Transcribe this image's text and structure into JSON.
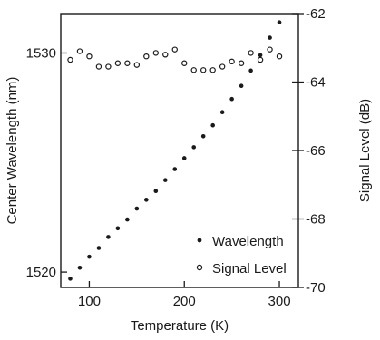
{
  "chart_data": {
    "type": "scatter",
    "title": "",
    "xlabel": "Temperature (K)",
    "ylabel_left": "Center Wavelength (nm)",
    "ylabel_right": "Signal Level (dB)",
    "xlim": [
      70,
      320
    ],
    "ylim_left": [
      1519.3,
      1531.8
    ],
    "ylim_right": [
      -70,
      -62
    ],
    "x_ticks": [
      100,
      200,
      300
    ],
    "y_left_ticks": [
      1520,
      1530
    ],
    "y_right_ticks": [
      -70,
      -68,
      -66,
      -64,
      -62
    ],
    "grid": false,
    "legend_position": "bottom-right",
    "series": [
      {
        "name": "Wavelength",
        "axis": "left",
        "marker": "filled-dot",
        "color": "#1a1a1a",
        "x": [
          80,
          90,
          100,
          110,
          120,
          130,
          140,
          150,
          160,
          170,
          180,
          190,
          200,
          210,
          220,
          230,
          240,
          250,
          260,
          270,
          280,
          290,
          300
        ],
        "y": [
          1519.7,
          1520.2,
          1520.7,
          1521.1,
          1521.6,
          1522.0,
          1522.4,
          1522.9,
          1523.3,
          1523.7,
          1524.2,
          1524.7,
          1525.2,
          1525.7,
          1526.2,
          1526.7,
          1527.3,
          1527.9,
          1528.5,
          1529.2,
          1529.9,
          1530.7,
          1531.4
        ]
      },
      {
        "name": "Signal Level",
        "axis": "right",
        "marker": "open-circle",
        "color": "#1a1a1a",
        "x": [
          80,
          90,
          100,
          110,
          120,
          130,
          140,
          150,
          160,
          170,
          180,
          190,
          200,
          210,
          220,
          230,
          240,
          250,
          260,
          270,
          280,
          290,
          300
        ],
        "y": [
          -63.35,
          -63.1,
          -63.25,
          -63.55,
          -63.55,
          -63.45,
          -63.45,
          -63.5,
          -63.25,
          -63.15,
          -63.2,
          -63.05,
          -63.45,
          -63.65,
          -63.65,
          -63.65,
          -63.55,
          -63.4,
          -63.45,
          -63.15,
          -63.35,
          -63.05,
          -63.25
        ]
      }
    ]
  }
}
